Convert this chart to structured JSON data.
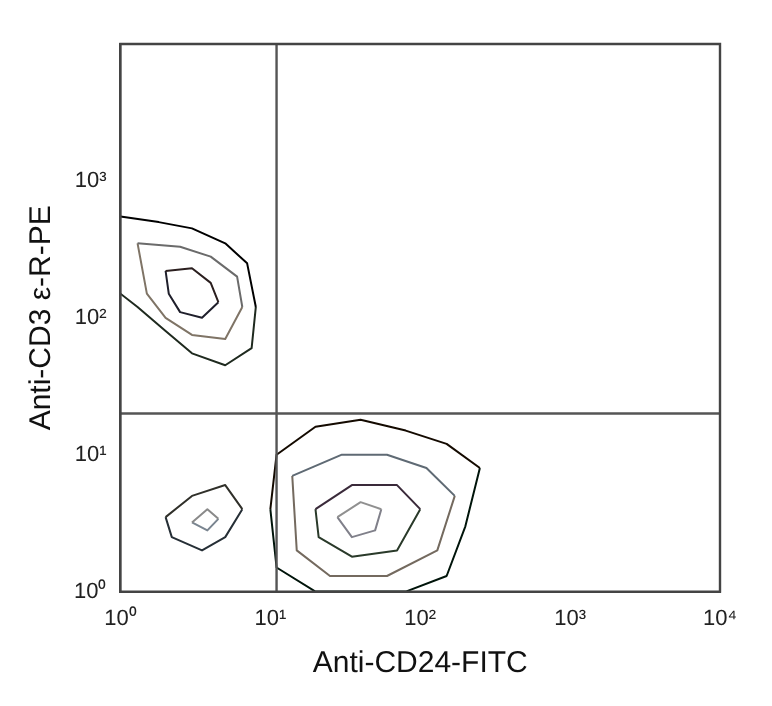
{
  "chart_data": {
    "type": "line",
    "xlabel": "Anti-CD24-FITC",
    "ylabel": "Anti-CD3 ε-R-PE",
    "log": "xy",
    "xlim": [
      1,
      10000
    ],
    "ylim": [
      1,
      10000
    ],
    "xticks": [
      {
        "value": 1,
        "label": "10⁰"
      },
      {
        "value": 10,
        "label": "10¹"
      },
      {
        "value": 100,
        "label": "10²"
      },
      {
        "value": 1000,
        "label": "10³"
      },
      {
        "value": 10000,
        "label": "10⁴"
      }
    ],
    "yticks": [
      {
        "value": 1,
        "label": "10⁰"
      },
      {
        "value": 10,
        "label": "10¹"
      },
      {
        "value": 100,
        "label": "10²"
      },
      {
        "value": 1000,
        "label": "10³"
      }
    ],
    "ref_lines": [
      {
        "axis": "x",
        "value": 11,
        "color": "#555555"
      },
      {
        "axis": "y",
        "value": 20,
        "color": "#555555"
      }
    ],
    "series": [
      {
        "color": "#000000",
        "x": [
          1,
          1.8,
          3,
          5,
          7,
          8
        ],
        "values": [
          550,
          500,
          450,
          350,
          250,
          120
        ]
      },
      {
        "color": "#1f2a1f",
        "x": [
          1,
          1.3,
          2,
          3,
          5,
          7.5,
          8
        ],
        "values": [
          150,
          120,
          80,
          55,
          45,
          60,
          120
        ]
      },
      {
        "color": "#6b6b6b",
        "x": [
          1.3,
          2.5,
          4,
          6,
          6.5
        ],
        "values": [
          350,
          330,
          280,
          200,
          120
        ]
      },
      {
        "color": "#7f7466",
        "x": [
          1.3,
          1.5,
          2,
          3,
          5,
          6.5
        ],
        "values": [
          350,
          150,
          100,
          75,
          70,
          120
        ]
      },
      {
        "color": "#2b1f1f",
        "x": [
          2,
          3,
          4,
          4.5
        ],
        "values": [
          220,
          230,
          180,
          130
        ]
      },
      {
        "color": "#1f1f2b",
        "x": [
          2,
          2.1,
          2.5,
          3.5,
          4.5
        ],
        "values": [
          220,
          150,
          110,
          100,
          130
        ]
      },
      {
        "color": "#30302a",
        "x": [
          2,
          3,
          5,
          6.5
        ],
        "values": [
          3.5,
          5,
          6,
          4
        ]
      },
      {
        "color": "#262f36",
        "x": [
          2,
          2.2,
          3.5,
          5,
          6.5
        ],
        "values": [
          3.5,
          2.5,
          2,
          2.5,
          4
        ]
      },
      {
        "color": "#8a8a8a",
        "x": [
          3,
          3.8,
          4.5
        ],
        "values": [
          3.2,
          4,
          3.4
        ]
      },
      {
        "color": "#7a8590",
        "x": [
          3,
          3.8,
          4.5
        ],
        "values": [
          3.2,
          2.8,
          3.4
        ]
      },
      {
        "color": "#140a00",
        "x": [
          10,
          11,
          20,
          40,
          80,
          150,
          250
        ],
        "values": [
          4,
          10,
          16,
          18,
          15,
          12,
          8
        ]
      },
      {
        "color": "#00140a",
        "x": [
          10,
          11,
          20,
          80,
          150,
          200,
          250
        ],
        "values": [
          4,
          1.5,
          1,
          1,
          1.3,
          3,
          8
        ]
      },
      {
        "color": "#5f6a74",
        "x": [
          14,
          30,
          60,
          110,
          170
        ],
        "values": [
          7,
          10,
          10,
          8,
          5
        ]
      },
      {
        "color": "#746a5f",
        "x": [
          14,
          15,
          25,
          60,
          130,
          170
        ],
        "values": [
          7,
          2,
          1.3,
          1.3,
          2,
          5
        ]
      },
      {
        "color": "#3a2a3a",
        "x": [
          20,
          35,
          70,
          100
        ],
        "values": [
          4,
          6,
          6,
          4
        ]
      },
      {
        "color": "#2a3a2a",
        "x": [
          20,
          21,
          35,
          70,
          100
        ],
        "values": [
          4,
          2.5,
          1.8,
          2,
          4
        ]
      },
      {
        "color": "#909090",
        "x": [
          28,
          40,
          55
        ],
        "values": [
          3.5,
          4.5,
          4
        ]
      },
      {
        "color": "#80808a",
        "x": [
          28,
          35,
          50,
          55
        ],
        "values": [
          3.5,
          2.5,
          2.8,
          4
        ]
      }
    ]
  }
}
